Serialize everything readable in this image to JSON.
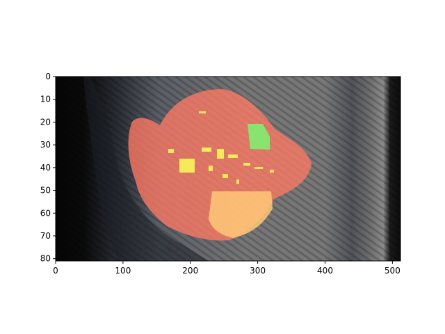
{
  "chart_data": {
    "type": "heatmap",
    "title": "",
    "xlabel": "",
    "ylabel": "",
    "xlim": [
      0,
      512
    ],
    "ylim": [
      81,
      0
    ],
    "x_ticks": [
      0,
      100,
      200,
      300,
      400,
      500
    ],
    "y_ticks": [
      0,
      10,
      20,
      30,
      40,
      50,
      60,
      70,
      80
    ],
    "background_image": "grayscale CT-like cross-section slice",
    "overlays": [
      {
        "label_color": "#ff8070",
        "region": "large lesion segmentation (red/salmon)",
        "approx_extent_x": [
          110,
          380
        ],
        "approx_extent_y": [
          5,
          72
        ]
      },
      {
        "label_color": "#ffc878",
        "region": "lower sub-region (orange)",
        "approx_extent_x": [
          230,
          320
        ],
        "approx_extent_y": [
          50,
          70
        ]
      },
      {
        "label_color": "#80f070",
        "region": "small rectangle (green)",
        "approx_extent_x": [
          285,
          318
        ],
        "approx_extent_y": [
          21,
          32
        ]
      },
      {
        "label_color": "#f0e860",
        "region": "scattered speckles (yellow)",
        "approx_extent_x": [
          150,
          340
        ],
        "approx_extent_y": [
          30,
          48
        ]
      }
    ]
  }
}
